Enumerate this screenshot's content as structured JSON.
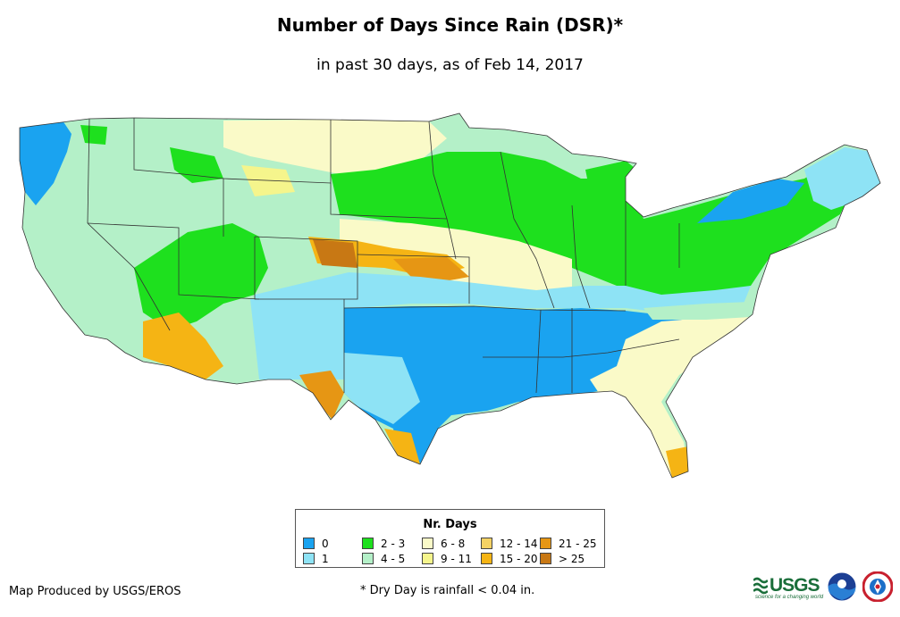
{
  "title": "Number of Days Since Rain (DSR)*",
  "subtitle": "in past 30 days, as of Feb 14, 2017",
  "legend": {
    "title": "Nr. Days",
    "items": [
      {
        "label": "0",
        "color": "#1aa3f0"
      },
      {
        "label": "1",
        "color": "#8ee3f5"
      },
      {
        "label": "2 - 3",
        "color": "#1ee01e"
      },
      {
        "label": "4 - 5",
        "color": "#b4f0c8"
      },
      {
        "label": "6 - 8",
        "color": "#fafac8"
      },
      {
        "label": "9 - 11",
        "color": "#f5f58c"
      },
      {
        "label": "12 - 14",
        "color": "#f5d264"
      },
      {
        "label": "15 - 20",
        "color": "#f5b414"
      },
      {
        "label": "21 - 25",
        "color": "#e69614"
      },
      {
        "label": "> 25",
        "color": "#c87814"
      }
    ]
  },
  "credit": "Map Produced by USGS/EROS",
  "footnote": "* Dry Day is rainfall < 0.04 in.",
  "logos": {
    "usgs_text": "USGS",
    "usgs_tagline": "science for a changing world",
    "noaa_icon": "noaa-logo",
    "nws_icon": "national-weather-service-logo"
  }
}
